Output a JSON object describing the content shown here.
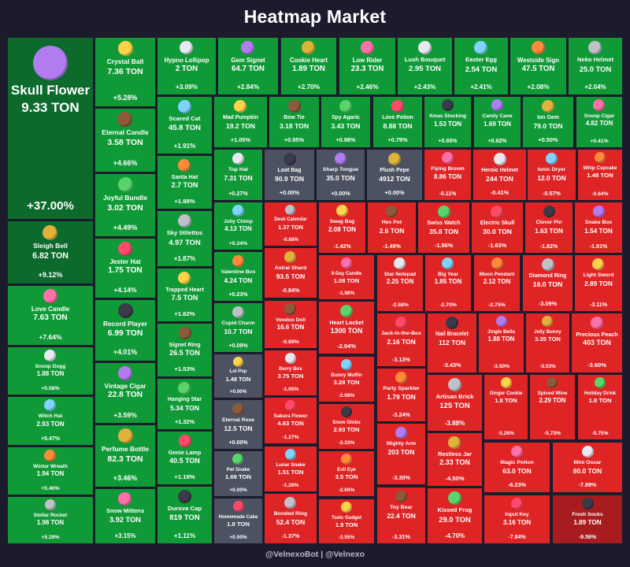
{
  "header": {
    "title": "Heatmap Market"
  },
  "footer": {
    "text": "@VelnexoBot | @Velnexo"
  },
  "colors": {
    "up": "#109a37",
    "up_strong": "#0b6a2c",
    "flat": "#4c5261",
    "down": "#df2426",
    "down_strong": "#a81c1f",
    "background": "#1c1b2b"
  },
  "tiles": [
    {
      "name": "Skull Flower",
      "price": "9.33 TON",
      "change": "+37.00%"
    },
    {
      "name": "Sleigh Bell",
      "price": "6.82 TON",
      "change": "+9.12%"
    },
    {
      "name": "Love Candle",
      "price": "7.63 TON",
      "change": "+7.64%"
    },
    {
      "name": "Snoop Dogg",
      "price": "1.88 TON",
      "change": "+5.58%"
    },
    {
      "name": "Witch Hat",
      "price": "2.93 TON",
      "change": "+5.47%"
    },
    {
      "name": "Winter Wreath",
      "price": "1.94 TON",
      "change": "+5.40%"
    },
    {
      "name": "Stellar Rocket",
      "price": "1.98 TON",
      "change": "+5.29%"
    },
    {
      "name": "Crystal Ball",
      "price": "7.36 TON",
      "change": "+5.28%"
    },
    {
      "name": "Eternal Candle",
      "price": "3.58 TON",
      "change": "+4.66%"
    },
    {
      "name": "Joyful Bundle",
      "price": "3.02 TON",
      "change": "+4.49%"
    },
    {
      "name": "Jester Hat",
      "price": "1.75 TON",
      "change": "+4.14%"
    },
    {
      "name": "Record Player",
      "price": "6.99 TON",
      "change": "+4.01%"
    },
    {
      "name": "Vintage Cigar",
      "price": "22.8 TON",
      "change": "+3.59%"
    },
    {
      "name": "Perfume Bottle",
      "price": "82.3 TON",
      "change": "+3.46%"
    },
    {
      "name": "Snow Mittens",
      "price": "3.92 TON",
      "change": "+3.15%"
    },
    {
      "name": "Hypno Lollipop",
      "price": "2 TON",
      "change": "+3.09%"
    },
    {
      "name": "Scared Cat",
      "price": "45.8 TON",
      "change": "+1.91%"
    },
    {
      "name": "Santa Hat",
      "price": "2.7 TON",
      "change": "+1.88%"
    },
    {
      "name": "Sky Stilettos",
      "price": "4.97 TON",
      "change": "+1.87%"
    },
    {
      "name": "Trapped Heart",
      "price": "7.5 TON",
      "change": "+1.62%"
    },
    {
      "name": "Signet Ring",
      "price": "26.5 TON",
      "change": "+1.53%"
    },
    {
      "name": "Hanging Star",
      "price": "5.34 TON",
      "change": "+1.32%"
    },
    {
      "name": "Genie Lamp",
      "price": "40.5 TON",
      "change": "+1.19%"
    },
    {
      "name": "Durova Cap",
      "price": "819 TON",
      "change": "+1.11%"
    },
    {
      "name": "Gem Signet",
      "price": "64.7 TON",
      "change": "+2.84%"
    },
    {
      "name": "Cookie Heart",
      "price": "1.89 TON",
      "change": "+2.70%"
    },
    {
      "name": "Low Rider",
      "price": "23.3 TON",
      "change": "+2.46%"
    },
    {
      "name": "Lush Bouquet",
      "price": "2.95 TON",
      "change": "+2.43%"
    },
    {
      "name": "Easter Egg",
      "price": "2.54 TON",
      "change": "+2.41%"
    },
    {
      "name": "Westside Sign",
      "price": "47.5 TON",
      "change": "+2.08%"
    },
    {
      "name": "Neko Helmet",
      "price": "25.0 TON",
      "change": "+2.04%"
    },
    {
      "name": "Mad Pumpkin",
      "price": "19.2 TON",
      "change": "+1.05%"
    },
    {
      "name": "Bow Tie",
      "price": "3.18 TON",
      "change": "+0.95%"
    },
    {
      "name": "Spy Agaric",
      "price": "3.43 TON",
      "change": "+0.88%"
    },
    {
      "name": "Love Potion",
      "price": "8.88 TON",
      "change": "+0.79%"
    },
    {
      "name": "Xmas Stocking",
      "price": "1.53 TON",
      "change": "+0.65%"
    },
    {
      "name": "Candy Cane",
      "price": "1.69 TON",
      "change": "+0.62%"
    },
    {
      "name": "Ion Gem",
      "price": "79.0 TON",
      "change": "+0.50%"
    },
    {
      "name": "Snoop Cigar",
      "price": "4.82 TON",
      "change": "+0.41%"
    },
    {
      "name": "Top Hat",
      "price": "7.31 TON",
      "change": "+0.27%"
    },
    {
      "name": "Jolly Chimp",
      "price": "4.13 TON",
      "change": "+0.24%"
    },
    {
      "name": "Valentine Box",
      "price": "4.24 TON",
      "change": "+0.23%"
    },
    {
      "name": "Cupid Charm",
      "price": "10.7 TON",
      "change": "+0.09%"
    },
    {
      "name": "Lol Pop",
      "price": "1.48 TON",
      "change": "+0.00%"
    },
    {
      "name": "Eternal Rose",
      "price": "12.5 TON",
      "change": "+0.00%"
    },
    {
      "name": "Pet Snake",
      "price": "1.69 TON",
      "change": "+0.00%"
    },
    {
      "name": "Homemade Cake",
      "price": "1.8 TON",
      "change": "+0.00%"
    },
    {
      "name": "Loot Bag",
      "price": "90.9 TON",
      "change": "+0.00%"
    },
    {
      "name": "Sharp Tongue",
      "price": "35.0 TON",
      "change": "+0.00%"
    },
    {
      "name": "Plush Pepe",
      "price": "4912 TON",
      "change": "+0.00%"
    },
    {
      "name": "Flying Broom",
      "price": "8.86 TON",
      "change": "-0.11%"
    },
    {
      "name": "Heroic Helmet",
      "price": "244 TON",
      "change": "-0.41%"
    },
    {
      "name": "Ionic Dryer",
      "price": "12.0 TON",
      "change": "-0.57%"
    },
    {
      "name": "Whip Cupcake",
      "price": "1.48 TON",
      "change": "-0.64%"
    },
    {
      "name": "Desk Calendar",
      "price": "1.37 TON",
      "change": "-0.68%"
    },
    {
      "name": "Swag Bag",
      "price": "2.08 TON",
      "change": "-1.42%"
    },
    {
      "name": "Hex Pot",
      "price": "2.6 TON",
      "change": "-1.49%"
    },
    {
      "name": "Swiss Watch",
      "price": "35.8 TON",
      "change": "-1.56%"
    },
    {
      "name": "Electric Skull",
      "price": "30.0 TON",
      "change": "-1.63%"
    },
    {
      "name": "Clover Pin",
      "price": "1.63 TON",
      "change": "-1.82%"
    },
    {
      "name": "Snake Box",
      "price": "1.54 TON",
      "change": "-1.91%"
    },
    {
      "name": "Astral Shard",
      "price": "93.5 TON",
      "change": "-0.84%"
    },
    {
      "name": "8-Day Candle",
      "price": "1.08 TON",
      "change": "-1.98%"
    },
    {
      "name": "Star Notepad",
      "price": "2.25 TON",
      "change": "-2.58%"
    },
    {
      "name": "Big Year",
      "price": "1.85 TON",
      "change": "-2.70%"
    },
    {
      "name": "Moon Pendant",
      "price": "2.12 TON",
      "change": "-2.75%"
    },
    {
      "name": "Diamond Ring",
      "price": "16.0 TON",
      "change": "-3.09%"
    },
    {
      "name": "Light Sword",
      "price": "2.89 TON",
      "change": "-3.11%"
    },
    {
      "name": "Voodoo Doll",
      "price": "16.6 TON",
      "change": "-0.89%"
    },
    {
      "name": "Heart Locket",
      "price": "1300 TON",
      "change": "-2.04%"
    },
    {
      "name": "Jack-in-the-Box",
      "price": "2.16 TON",
      "change": "-3.13%"
    },
    {
      "name": "Nail Bracelet",
      "price": "112 TON",
      "change": "-3.43%"
    },
    {
      "name": "Jingle Bells",
      "price": "1.88 TON",
      "change": "-3.50%"
    },
    {
      "name": "Jelly Bunny",
      "price": "3.35 TON",
      "change": "-3.53%"
    },
    {
      "name": "Precious Peach",
      "price": "403 TON",
      "change": "-3.60%"
    },
    {
      "name": "Berry Box",
      "price": "3.75 TON",
      "change": "-1.05%"
    },
    {
      "name": "Bunny Muffin",
      "price": "3.28 TON",
      "change": "-2.08%"
    },
    {
      "name": "Party Sparkler",
      "price": "1.79 TON",
      "change": "-3.24%"
    },
    {
      "name": "Artisan Brick",
      "price": "125 TON",
      "change": "-3.88%"
    },
    {
      "name": "Ginger Cookie",
      "price": "1.8 TON",
      "change": "-5.26%"
    },
    {
      "name": "Spiced Wine",
      "price": "2.29 TON",
      "change": "-5.73%"
    },
    {
      "name": "Holiday Drink",
      "price": "1.8 TON",
      "change": "-5.75%"
    },
    {
      "name": "Sakura Flower",
      "price": "4.63 TON",
      "change": "-1.27%"
    },
    {
      "name": "Snow Globe",
      "price": "2.93 TON",
      "change": "-2.33%"
    },
    {
      "name": "Mighty Arm",
      "price": "203 TON",
      "change": "-3.30%"
    },
    {
      "name": "Restless Jar",
      "price": "2.33 TON",
      "change": "-4.50%"
    },
    {
      "name": "Magic Potion",
      "price": "63.0 TON",
      "change": "-6.23%"
    },
    {
      "name": "Mini Oscar",
      "price": "80.0 TON",
      "change": "-7.89%"
    },
    {
      "name": "Lunar Snake",
      "price": "1.51 TON",
      "change": "-1.29%"
    },
    {
      "name": "Evil Eye",
      "price": "3.5 TON",
      "change": "-2.60%"
    },
    {
      "name": "Bonded Ring",
      "price": "52.4 TON",
      "change": "-1.37%"
    },
    {
      "name": "Toxic Gadget",
      "price": "1.9 TON",
      "change": "-2.55%"
    },
    {
      "name": "Toy Bear",
      "price": "22.4 TON",
      "change": "-3.31%"
    },
    {
      "name": "Kissed Frog",
      "price": "29.0 TON",
      "change": "-4.70%"
    },
    {
      "name": "Input Key",
      "price": "3.16 TON",
      "change": "-7.84%"
    },
    {
      "name": "Fresh Socks",
      "price": "1.89 TON",
      "change": "-9.56%"
    }
  ]
}
